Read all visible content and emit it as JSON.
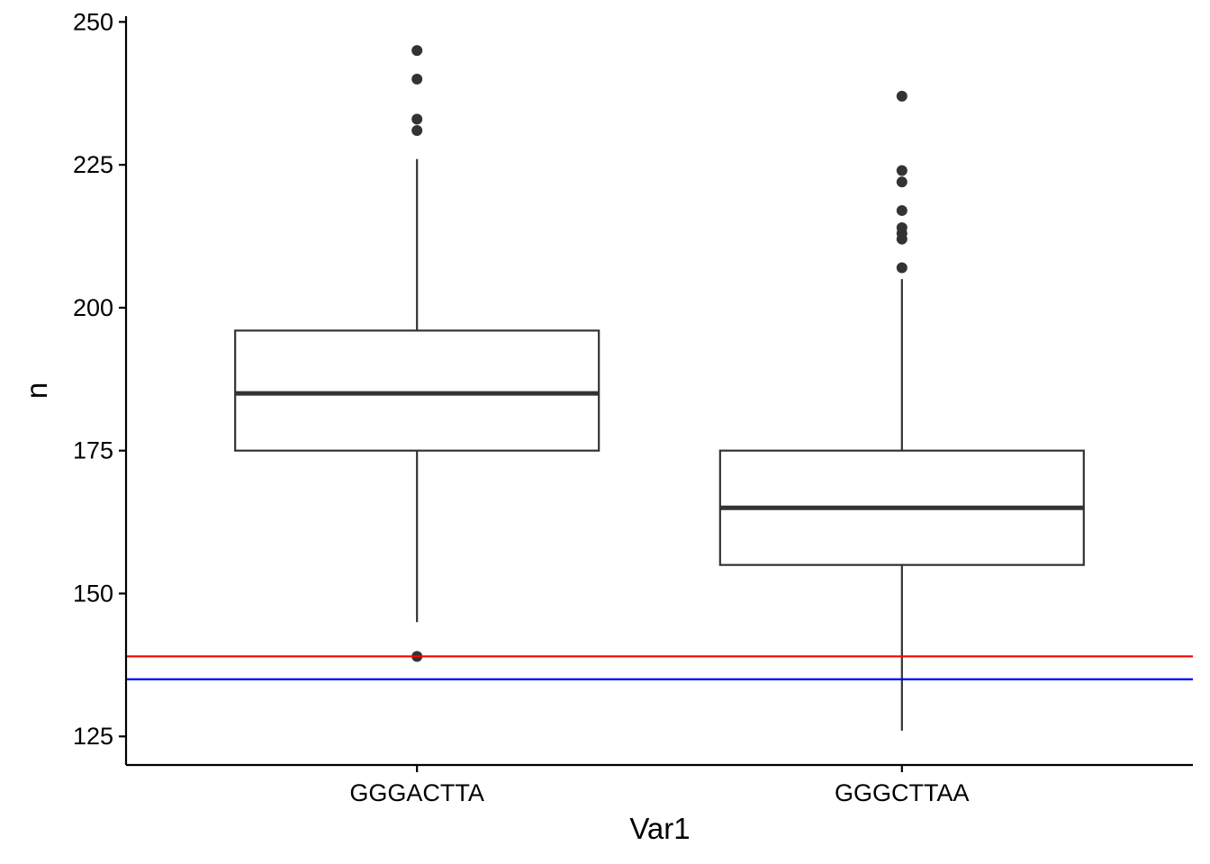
{
  "chart_data": {
    "type": "boxplot",
    "xlabel": "Var1",
    "ylabel": "n",
    "ylim": [
      120,
      251
    ],
    "yticks": [
      125,
      150,
      175,
      200,
      225,
      250
    ],
    "grid": false,
    "legend": "none",
    "categories": [
      "GGGACTTA",
      "GGGCTTAA"
    ],
    "boxes": [
      {
        "category": "GGGACTTA",
        "q1": 175,
        "median": 185,
        "q3": 196,
        "whisker_low": 145,
        "whisker_high": 226,
        "outliers": [
          139,
          231,
          233,
          240,
          245
        ]
      },
      {
        "category": "GGGCTTAA",
        "q1": 155,
        "median": 165,
        "q3": 175,
        "whisker_low": 126,
        "whisker_high": 205,
        "outliers": [
          207,
          212,
          213,
          214,
          217,
          222,
          224,
          237
        ]
      }
    ],
    "hlines": [
      {
        "y": 139,
        "color": "#ff0000"
      },
      {
        "y": 135,
        "color": "#0000ff"
      }
    ],
    "colors": {
      "box_stroke": "#333333",
      "box_fill": "#ffffff",
      "point": "#333333",
      "axis": "#000000"
    }
  }
}
